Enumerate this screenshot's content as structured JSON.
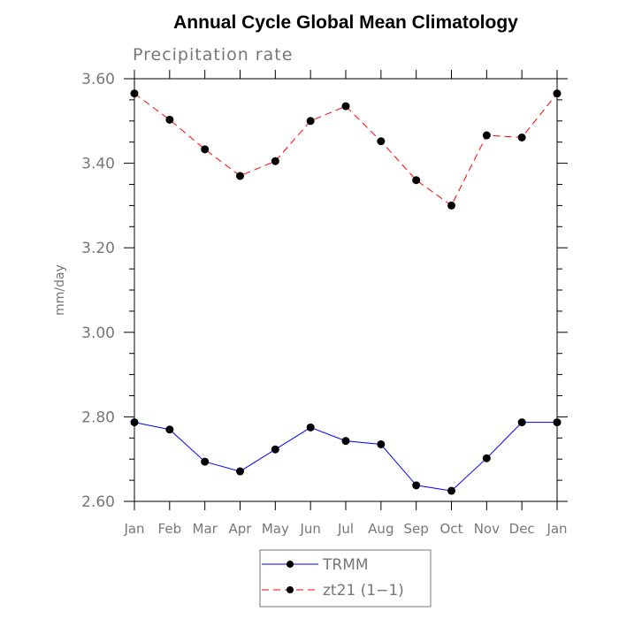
{
  "chart_data": {
    "type": "line",
    "title": "Annual Cycle Global Mean Climatology",
    "subtitle": "Precipitation rate",
    "xlabel": "",
    "ylabel": "mm/day",
    "categories": [
      "Jan",
      "Feb",
      "Mar",
      "Apr",
      "May",
      "Jun",
      "Jul",
      "Aug",
      "Sep",
      "Oct",
      "Nov",
      "Dec",
      "Jan"
    ],
    "ylim": [
      2.6,
      3.6
    ],
    "yticks": [
      2.6,
      2.8,
      3.0,
      3.2,
      3.4,
      3.6
    ],
    "ytick_labels": [
      "2.60",
      "2.80",
      "3.00",
      "3.20",
      "3.40",
      "3.60"
    ],
    "yminor_step": 0.05,
    "grid": false,
    "legend_position": "bottom-center",
    "series": [
      {
        "name": "TRMM",
        "color": "#0000ff",
        "dash": "solid",
        "values": [
          2.787,
          2.77,
          2.694,
          2.671,
          2.723,
          2.775,
          2.743,
          2.735,
          2.638,
          2.625,
          2.702,
          2.787,
          2.787
        ]
      },
      {
        "name": "zt21 (1−1)",
        "color": "#ff0000",
        "dash": "dashed",
        "values": [
          3.565,
          3.503,
          3.433,
          3.37,
          3.405,
          3.5,
          3.535,
          3.452,
          3.36,
          3.3,
          3.466,
          3.461,
          3.565
        ]
      }
    ]
  }
}
